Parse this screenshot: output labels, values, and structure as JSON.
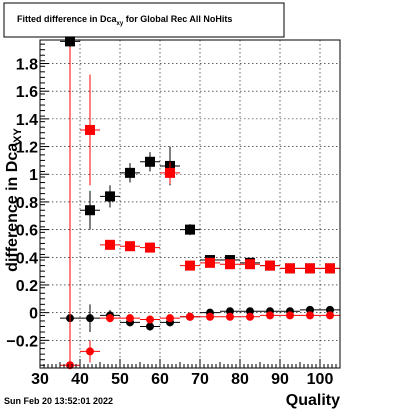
{
  "title": {
    "prefix": "Fitted difference in Dca",
    "subscript": "xy",
    "suffix": " for Global Rec All NoHits"
  },
  "timestamp": "Sun Feb 20 13:52:01 2022",
  "chart_data": {
    "type": "scatter",
    "xlabel": "Quality",
    "ylabel_main": "difference in Dca",
    "ylabel_sub": "XY",
    "xlim": [
      30,
      105
    ],
    "ylim": [
      -0.4,
      1.97
    ],
    "xticks": [
      30,
      40,
      50,
      60,
      70,
      80,
      90,
      100
    ],
    "yticks": [
      -0.2,
      0,
      0.2,
      0.4,
      0.6,
      0.8,
      1,
      1.2,
      1.4,
      1.6,
      1.8
    ],
    "ytick_labels": [
      "−0.2",
      "0",
      "0.2",
      "0.4",
      "0.6",
      "0.8",
      "1",
      "1.2",
      "1.4",
      "1.6",
      "1.8"
    ],
    "grid": true,
    "x_half_width": 2.5,
    "series": [
      {
        "color": "#000000",
        "marker": "square",
        "points": [
          {
            "x": 37.5,
            "y": 1.96,
            "err": 2.0
          },
          {
            "x": 42.5,
            "y": 0.74,
            "err": 0.14
          },
          {
            "x": 47.5,
            "y": 0.84,
            "err": 0.08
          },
          {
            "x": 52.5,
            "y": 1.01,
            "err": 0.07
          },
          {
            "x": 57.5,
            "y": 1.09,
            "err": 0.07
          },
          {
            "x": 62.5,
            "y": 1.06,
            "err": 0.14
          },
          {
            "x": 67.5,
            "y": 0.6,
            "err": 0.04
          },
          {
            "x": 72.5,
            "y": 0.38,
            "err": 0.03
          },
          {
            "x": 77.5,
            "y": 0.38,
            "err": 0.03
          },
          {
            "x": 82.5,
            "y": 0.36,
            "err": 0.02
          },
          {
            "x": 87.5,
            "y": 0.34,
            "err": 0.02
          },
          {
            "x": 92.5,
            "y": 0.32,
            "err": 0.02
          },
          {
            "x": 97.5,
            "y": 0.32,
            "err": 0.02
          },
          {
            "x": 102.5,
            "y": 0.32,
            "err": 0.02
          }
        ]
      },
      {
        "color": "#ff0000",
        "marker": "square",
        "points": [
          {
            "x": 42.5,
            "y": 1.32,
            "err": 0.4
          },
          {
            "x": 47.5,
            "y": 0.49,
            "err": 0.03
          },
          {
            "x": 52.5,
            "y": 0.48,
            "err": 0.03
          },
          {
            "x": 57.5,
            "y": 0.47,
            "err": 0.03
          },
          {
            "x": 62.5,
            "y": 1.01,
            "err": 0.08
          },
          {
            "x": 67.5,
            "y": 0.34,
            "err": 0.02
          },
          {
            "x": 72.5,
            "y": 0.36,
            "err": 0.02
          },
          {
            "x": 77.5,
            "y": 0.35,
            "err": 0.02
          },
          {
            "x": 82.5,
            "y": 0.35,
            "err": 0.02
          },
          {
            "x": 87.5,
            "y": 0.34,
            "err": 0.02
          },
          {
            "x": 92.5,
            "y": 0.32,
            "err": 0.02
          },
          {
            "x": 97.5,
            "y": 0.32,
            "err": 0.02
          },
          {
            "x": 102.5,
            "y": 0.32,
            "err": 0.02
          }
        ]
      },
      {
        "color": "#000000",
        "marker": "circle",
        "points": [
          {
            "x": 37.5,
            "y": -0.04,
            "err": 0.02
          },
          {
            "x": 42.5,
            "y": -0.04,
            "err": 0.1
          },
          {
            "x": 47.5,
            "y": -0.02,
            "err": 0.04
          },
          {
            "x": 52.5,
            "y": -0.07,
            "err": 0.03
          },
          {
            "x": 57.5,
            "y": -0.1,
            "err": 0.03
          },
          {
            "x": 62.5,
            "y": -0.07,
            "err": 0.03
          },
          {
            "x": 67.5,
            "y": -0.03,
            "err": 0.02
          },
          {
            "x": 72.5,
            "y": 0.0,
            "err": 0.02
          },
          {
            "x": 77.5,
            "y": 0.01,
            "err": 0.02
          },
          {
            "x": 82.5,
            "y": 0.01,
            "err": 0.02
          },
          {
            "x": 87.5,
            "y": 0.01,
            "err": 0.02
          },
          {
            "x": 92.5,
            "y": 0.01,
            "err": 0.02
          },
          {
            "x": 97.5,
            "y": 0.02,
            "err": 0.02
          },
          {
            "x": 102.5,
            "y": 0.02,
            "err": 0.02
          }
        ]
      },
      {
        "color": "#ff0000",
        "marker": "circle",
        "points": [
          {
            "x": 37.5,
            "y": -0.38,
            "err": 2.3
          },
          {
            "x": 42.5,
            "y": -0.28,
            "err": 0.08
          },
          {
            "x": 47.5,
            "y": -0.04,
            "err": 0.03
          },
          {
            "x": 52.5,
            "y": -0.04,
            "err": 0.03
          },
          {
            "x": 57.5,
            "y": -0.05,
            "err": 0.02
          },
          {
            "x": 62.5,
            "y": -0.04,
            "err": 0.02
          },
          {
            "x": 67.5,
            "y": -0.03,
            "err": 0.02
          },
          {
            "x": 72.5,
            "y": -0.03,
            "err": 0.02
          },
          {
            "x": 77.5,
            "y": -0.03,
            "err": 0.02
          },
          {
            "x": 82.5,
            "y": -0.03,
            "err": 0.02
          },
          {
            "x": 87.5,
            "y": -0.02,
            "err": 0.02
          },
          {
            "x": 92.5,
            "y": -0.02,
            "err": 0.02
          },
          {
            "x": 97.5,
            "y": -0.02,
            "err": 0.02
          },
          {
            "x": 102.5,
            "y": -0.02,
            "err": 0.02
          }
        ]
      }
    ]
  }
}
